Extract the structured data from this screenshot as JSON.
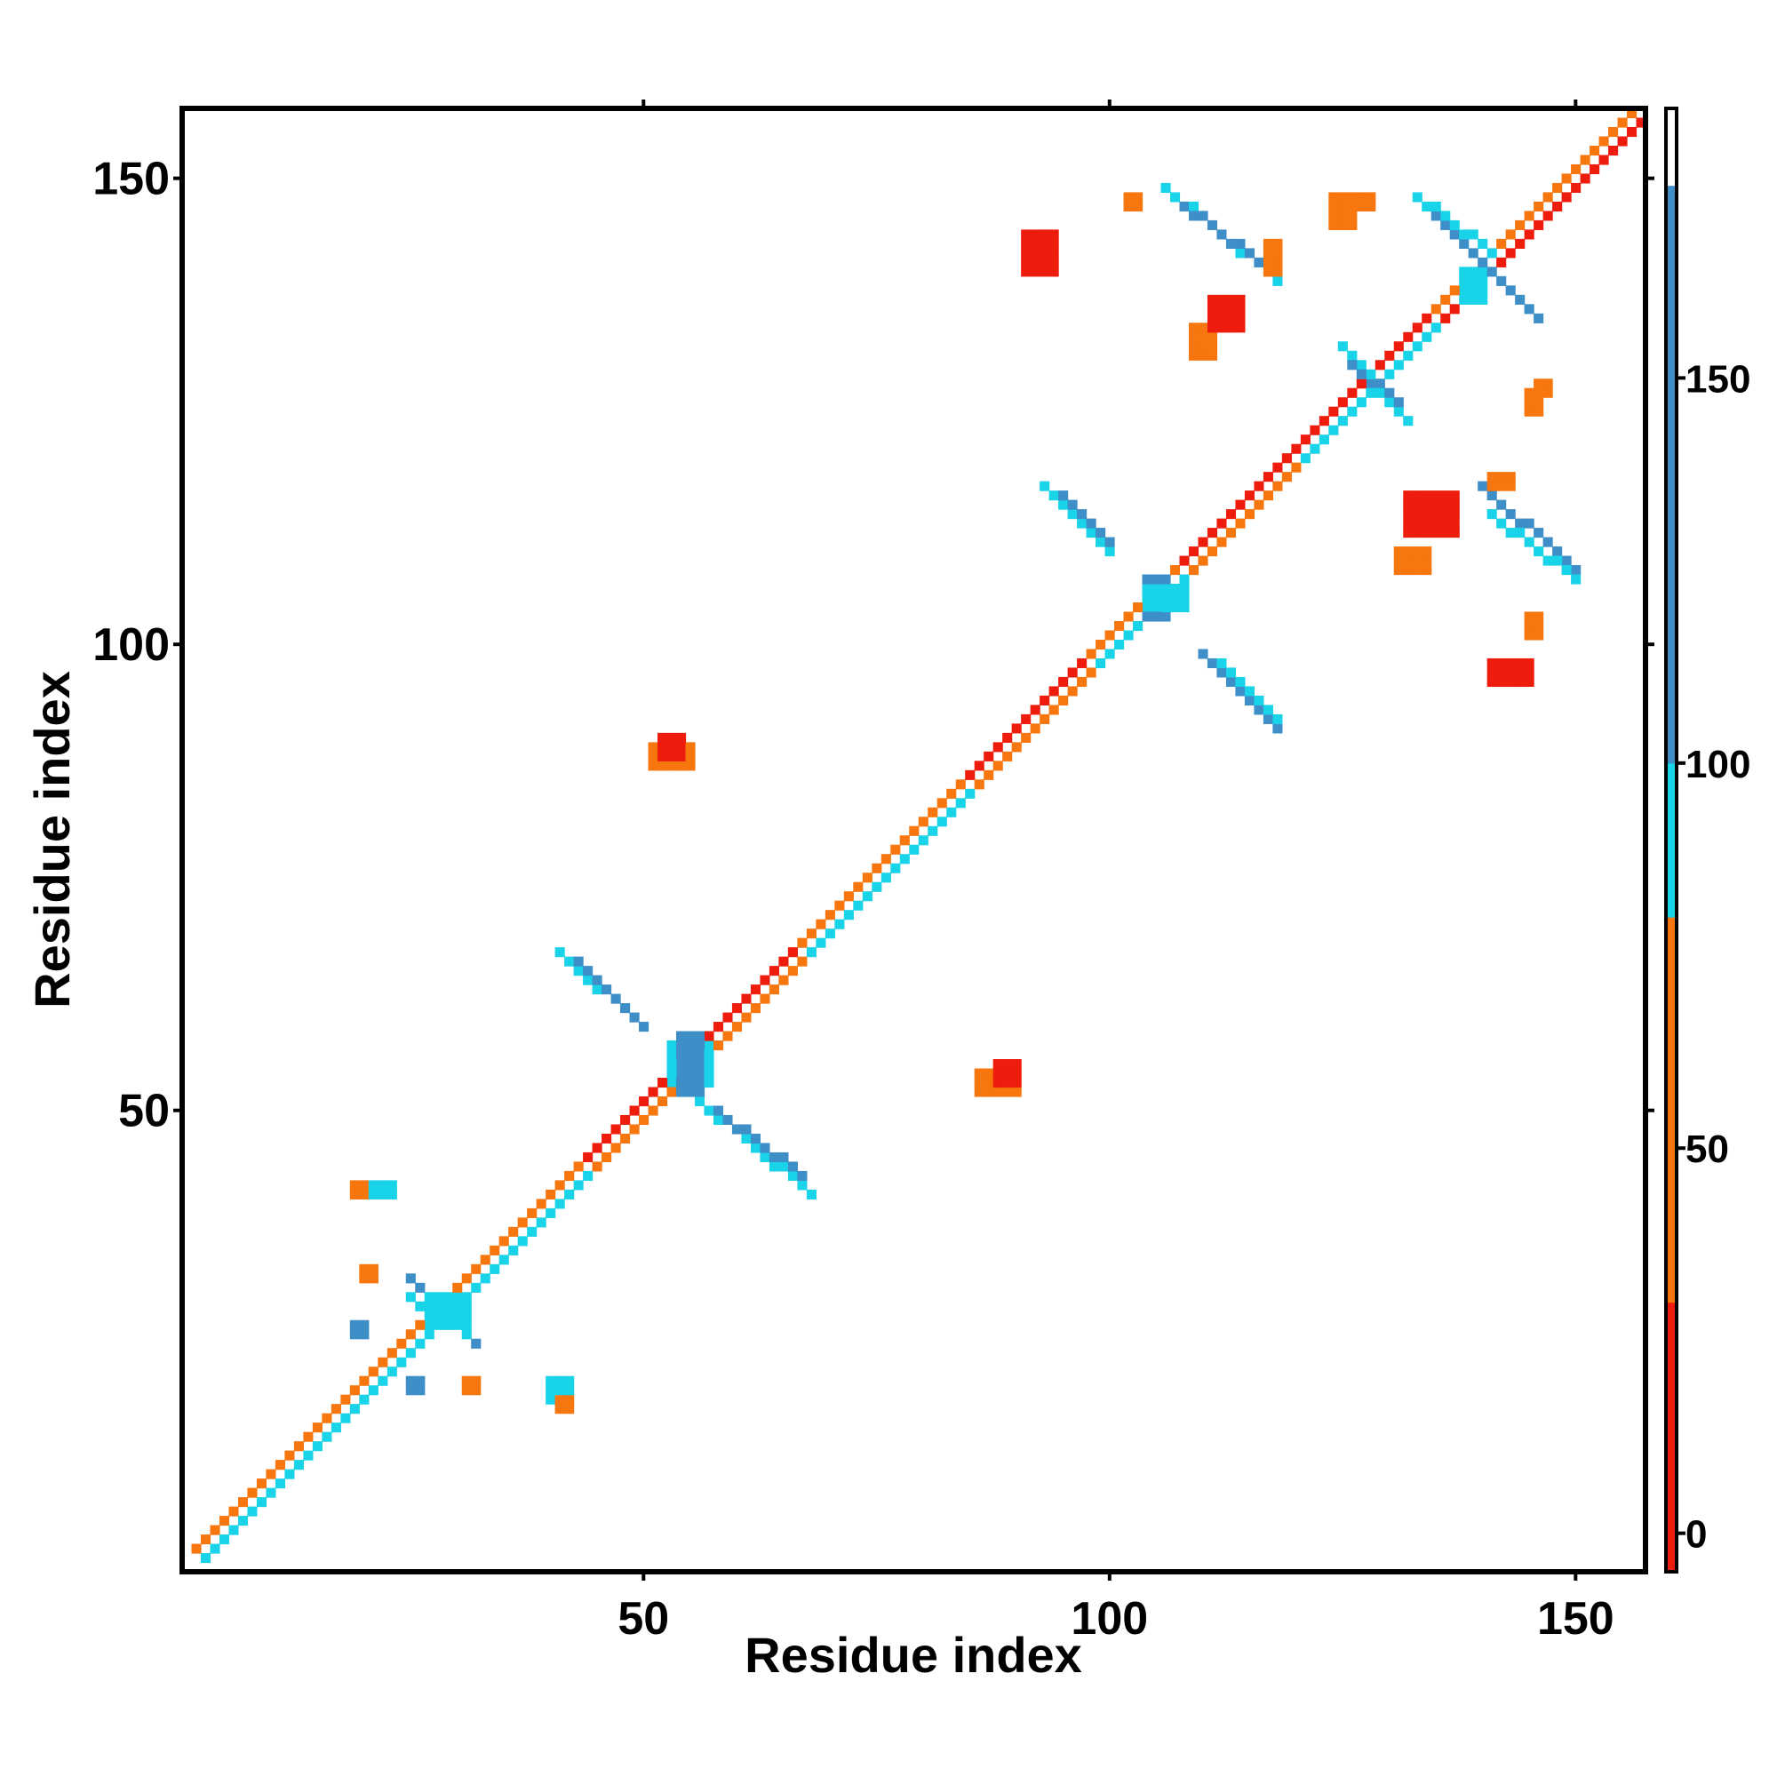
{
  "chart_data": {
    "type": "heatmap",
    "title": "",
    "xlabel": "Residue index",
    "ylabel": "Residue index",
    "xlim": [
      0.5,
      157.5
    ],
    "ylim": [
      0.5,
      157.5
    ],
    "xticks": [
      50,
      100,
      150
    ],
    "yticks": [
      50,
      100,
      150
    ],
    "xtick_labels": [
      "50",
      "100",
      "150"
    ],
    "ytick_labels": [
      "50",
      "100",
      "150"
    ],
    "grid": false,
    "colorbar": {
      "position": "right",
      "range": [
        -5,
        185
      ],
      "ticks": [
        0,
        50,
        100,
        150
      ],
      "tick_labels": [
        "0",
        "50",
        "100",
        "150"
      ],
      "bins": [
        {
          "min": -5,
          "max": 30,
          "color": "#ee1c0c"
        },
        {
          "min": 30,
          "max": 80,
          "color": "#f7760e"
        },
        {
          "min": 80,
          "max": 100,
          "color": "#19d3e8"
        },
        {
          "min": 100,
          "max": 175,
          "color": "#3e8ec8"
        },
        {
          "min": 175,
          "max": 185,
          "color": "#ffffff"
        }
      ]
    },
    "contact_segments": [
      {
        "x": [
          1,
          157
        ],
        "y": [
          1,
          157
        ],
        "value": 40,
        "kind": "diagonal"
      },
      {
        "x": [
          2,
          30
        ],
        "y": [
          3,
          31
        ],
        "value": 60
      },
      {
        "x": [
          3,
          31
        ],
        "y": [
          2,
          30
        ],
        "value": 90
      },
      {
        "x": [
          31,
          44
        ],
        "y": [
          32,
          45
        ],
        "value": 50
      },
      {
        "x": [
          32,
          45
        ],
        "y": [
          31,
          44
        ],
        "value": 95
      },
      {
        "x": [
          44,
          58
        ],
        "y": [
          45,
          59
        ],
        "value": 20
      },
      {
        "x": [
          45,
          58
        ],
        "y": [
          44,
          57
        ],
        "value": 55
      },
      {
        "x": [
          58,
          68
        ],
        "y": [
          59,
          69
        ],
        "value": 15
      },
      {
        "x": [
          59,
          68
        ],
        "y": [
          58,
          67
        ],
        "value": 60
      },
      {
        "x": [
          67,
          85
        ],
        "y": [
          68,
          86
        ],
        "value": 30
      },
      {
        "x": [
          68,
          86
        ],
        "y": [
          67,
          85
        ],
        "value": 92
      },
      {
        "x": [
          85,
          98
        ],
        "y": [
          86,
          99
        ],
        "value": 10
      },
      {
        "x": [
          86,
          98
        ],
        "y": [
          85,
          97
        ],
        "value": 55
      },
      {
        "x": [
          98,
          108
        ],
        "y": [
          99,
          109
        ],
        "value": 50
      },
      {
        "x": [
          99,
          108
        ],
        "y": [
          98,
          107
        ],
        "value": 92
      },
      {
        "x": [
          108,
          120
        ],
        "y": [
          109,
          121
        ],
        "value": 10
      },
      {
        "x": [
          109,
          120
        ],
        "y": [
          108,
          119
        ],
        "value": 55
      },
      {
        "x": [
          120,
          135
        ],
        "y": [
          121,
          136
        ],
        "value": 15
      },
      {
        "x": [
          121,
          135
        ],
        "y": [
          120,
          134
        ],
        "value": 88
      },
      {
        "x": [
          135,
          157
        ],
        "y": [
          136,
          158
        ],
        "value": 45
      },
      {
        "x": [
          136,
          157
        ],
        "y": [
          135,
          156
        ],
        "value": 12
      },
      {
        "x": [
          41,
          50
        ],
        "y": [
          67,
          59
        ],
        "value": 95
      },
      {
        "x": [
          43,
          50
        ],
        "y": [
          66,
          59
        ],
        "value": 140
      },
      {
        "x": [
          56,
          68
        ],
        "y": [
          51,
          41
        ],
        "value": 92
      },
      {
        "x": [
          58,
          67
        ],
        "y": [
          50,
          43
        ],
        "value": 140
      },
      {
        "x": [
          93,
          100
        ],
        "y": [
          117,
          110
        ],
        "value": 92
      },
      {
        "x": [
          95,
          100
        ],
        "y": [
          116,
          111
        ],
        "value": 140
      },
      {
        "x": [
          110,
          118
        ],
        "y": [
          99,
          91
        ],
        "value": 140
      },
      {
        "x": [
          112,
          118
        ],
        "y": [
          98,
          92
        ],
        "value": 92
      },
      {
        "x": [
          106,
          118
        ],
        "y": [
          149,
          139
        ],
        "value": 92
      },
      {
        "x": [
          108,
          116
        ],
        "y": [
          147,
          141
        ],
        "value": 140
      },
      {
        "x": [
          125,
          132
        ],
        "y": [
          132,
          124
        ],
        "value": 92
      },
      {
        "x": [
          126,
          131
        ],
        "y": [
          130,
          126
        ],
        "value": 140
      },
      {
        "x": [
          134,
          146
        ],
        "y": [
          147,
          135
        ],
        "value": 140
      },
      {
        "x": [
          133,
          141
        ],
        "y": [
          148,
          142
        ],
        "value": 92
      },
      {
        "x": [
          140,
          150
        ],
        "y": [
          117,
          108
        ],
        "value": 140
      },
      {
        "x": [
          141,
          150
        ],
        "y": [
          114,
          107
        ],
        "value": 92
      },
      {
        "x": [
          25,
          32
        ],
        "y": [
          32,
          25
        ],
        "value": 140
      },
      {
        "x": [
          25,
          31
        ],
        "y": [
          30,
          26
        ],
        "value": 92
      }
    ],
    "contact_blocks": [
      {
        "x": [
          51,
          55
        ],
        "y": [
          87,
          89
        ],
        "value": 45
      },
      {
        "x": [
          52,
          54
        ],
        "y": [
          88,
          90
        ],
        "value": 25
      },
      {
        "x": [
          86,
          90
        ],
        "y": [
          52,
          54
        ],
        "value": 30
      },
      {
        "x": [
          88,
          90
        ],
        "y": [
          53,
          55
        ],
        "value": 20
      },
      {
        "x": [
          19,
          21
        ],
        "y": [
          41,
          42
        ],
        "value": 50
      },
      {
        "x": [
          21,
          23
        ],
        "y": [
          41,
          42
        ],
        "value": 95
      },
      {
        "x": [
          40,
          42
        ],
        "y": [
          19,
          21
        ],
        "value": 92
      },
      {
        "x": [
          41,
          42
        ],
        "y": [
          18,
          19
        ],
        "value": 60
      },
      {
        "x": [
          104,
          106
        ],
        "y": [
          103,
          107
        ],
        "value": 140
      },
      {
        "x": [
          104,
          108
        ],
        "y": [
          104,
          106
        ],
        "value": 92
      },
      {
        "x": [
          53,
          57
        ],
        "y": [
          53,
          57
        ],
        "value": 92
      },
      {
        "x": [
          54,
          56
        ],
        "y": [
          52,
          58
        ],
        "value": 140
      },
      {
        "x": [
          27,
          31
        ],
        "y": [
          27,
          30
        ],
        "value": 92
      },
      {
        "x": [
          138,
          140
        ],
        "y": [
          137,
          140
        ],
        "value": 92
      },
      {
        "x": [
          91,
          94
        ],
        "y": [
          140,
          144
        ],
        "value": 25
      },
      {
        "x": [
          102,
          103
        ],
        "y": [
          147,
          148
        ],
        "value": 50
      },
      {
        "x": [
          109,
          111
        ],
        "y": [
          131,
          134
        ],
        "value": 45
      },
      {
        "x": [
          111,
          114
        ],
        "y": [
          134,
          137
        ],
        "value": 15
      },
      {
        "x": [
          117,
          118
        ],
        "y": [
          140,
          143
        ],
        "value": 45
      },
      {
        "x": [
          124,
          126
        ],
        "y": [
          145,
          148
        ],
        "value": 55
      },
      {
        "x": [
          126,
          128
        ],
        "y": [
          147,
          148
        ],
        "value": 40
      },
      {
        "x": [
          132,
          137
        ],
        "y": [
          112,
          116
        ],
        "value": 20
      },
      {
        "x": [
          131,
          134
        ],
        "y": [
          108,
          110
        ],
        "value": 45
      },
      {
        "x": [
          141,
          143
        ],
        "y": [
          117,
          118
        ],
        "value": 60
      },
      {
        "x": [
          141,
          145
        ],
        "y": [
          96,
          98
        ],
        "value": 18
      },
      {
        "x": [
          145,
          146
        ],
        "y": [
          101,
          103
        ],
        "value": 45
      },
      {
        "x": [
          145,
          146
        ],
        "y": [
          125,
          127
        ],
        "value": 50
      },
      {
        "x": [
          146,
          147
        ],
        "y": [
          127,
          128
        ],
        "value": 40
      },
      {
        "x": [
          20,
          21
        ],
        "y": [
          32,
          33
        ],
        "value": 45
      },
      {
        "x": [
          19,
          20
        ],
        "y": [
          26,
          27
        ],
        "value": 140
      },
      {
        "x": [
          25,
          26
        ],
        "y": [
          20,
          21
        ],
        "value": 140
      },
      {
        "x": [
          31,
          32
        ],
        "y": [
          20,
          21
        ],
        "value": 45
      }
    ]
  }
}
